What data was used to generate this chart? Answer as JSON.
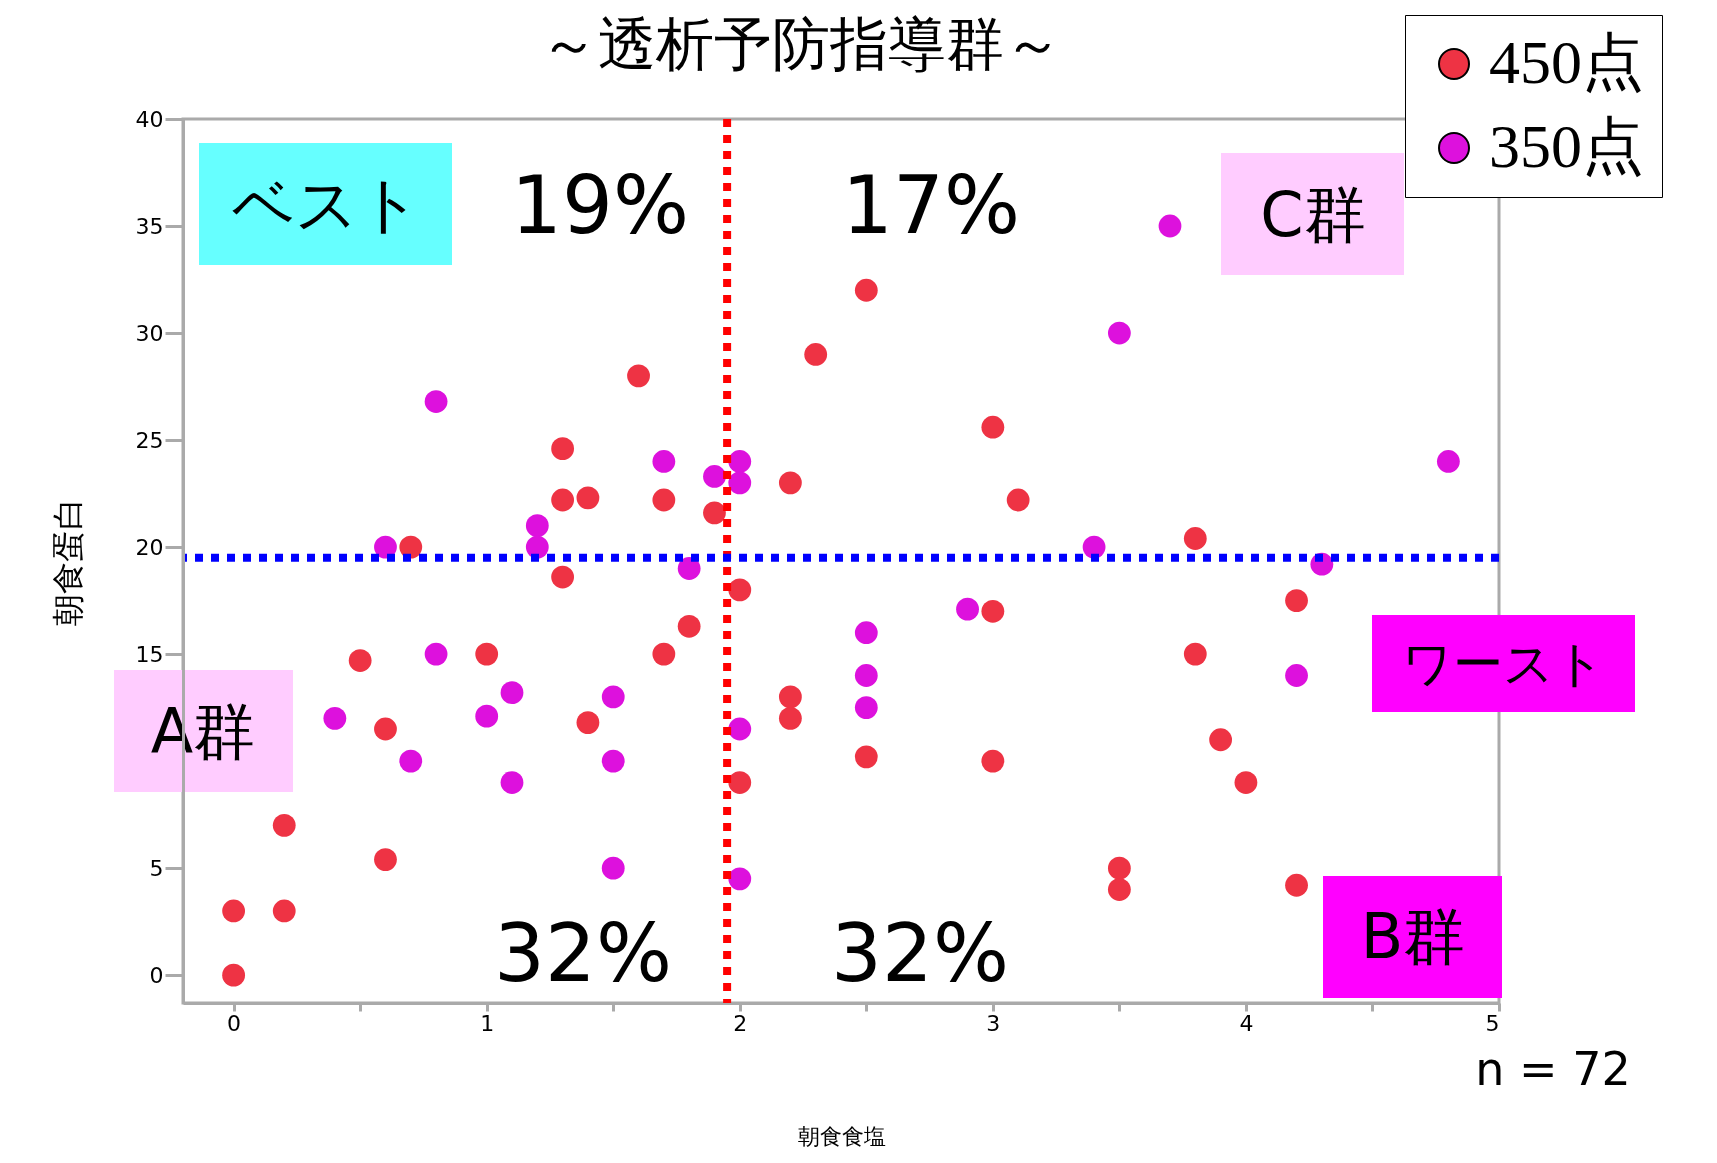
{
  "chart_data": {
    "type": "scatter",
    "title": "～透析予防指導群～",
    "xlabel": "朝食食塩",
    "ylabel": "朝食蛋白",
    "xlim": [
      -0.2,
      5
    ],
    "ylim": [
      -1.3,
      40
    ],
    "xticks": [
      0,
      {
        "value": 0.5,
        "label": null
      },
      1,
      {
        "value": 1.5,
        "label": null
      },
      2,
      {
        "value": 2.5,
        "label": null
      },
      3,
      {
        "value": 3.5,
        "label": null
      },
      4,
      {
        "value": 4.5,
        "label": null
      },
      5
    ],
    "yticks": [
      0,
      5,
      15,
      20,
      25,
      30,
      35,
      40
    ],
    "grid": false,
    "legend": "top right",
    "marker": "circle",
    "series": [
      {
        "name": "450点",
        "color": "#ee3344",
        "x": [
          0,
          0,
          0.2,
          0.2,
          0.5,
          0.6,
          0.6,
          0.7,
          1,
          1.3,
          1.3,
          1.4,
          1.3,
          1.4,
          1.6,
          1.7,
          1.7,
          1.8,
          1.9,
          2,
          2,
          2.2,
          2.2,
          2.2,
          2.3,
          2.5,
          2.5,
          3,
          3,
          3,
          3.1,
          3.5,
          3.5,
          3.8,
          3.8,
          3.9,
          4,
          4.2,
          4.2
        ],
        "values": [
          0,
          3,
          3,
          7,
          14.7,
          11.5,
          5.4,
          20,
          15,
          24.6,
          22.2,
          22.3,
          18.6,
          11.8,
          28,
          22.2,
          15,
          16.3,
          21.6,
          18,
          9,
          23,
          13,
          12,
          29,
          32,
          10.2,
          25.6,
          17,
          10,
          22.2,
          5,
          4,
          20.4,
          15,
          11,
          9,
          17.5,
          4.2
        ]
      },
      {
        "name": "350点",
        "color": "#dd11dd",
        "x": [
          0.4,
          0.6,
          0.7,
          0.8,
          0.8,
          1,
          1.1,
          1.1,
          1.2,
          1.2,
          1.5,
          1.5,
          1.5,
          1.7,
          1.8,
          1.9,
          2,
          2,
          2,
          2,
          2.5,
          2.5,
          2.5,
          2.9,
          3.4,
          3.5,
          3.7,
          4.2,
          4.3,
          4.8
        ],
        "values": [
          12,
          20,
          10,
          26.8,
          15,
          12.1,
          13.2,
          9,
          21,
          20,
          13,
          10,
          5,
          24,
          19,
          23.3,
          24,
          23,
          11.5,
          4.5,
          16,
          14,
          12.5,
          17.1,
          20,
          30,
          35,
          14,
          19.2,
          24
        ]
      }
    ],
    "ref_lines": [
      {
        "axis": "x",
        "value": 1.95,
        "color": "#ff0000",
        "line_style": "dotted"
      },
      {
        "axis": "y",
        "value": 19.5,
        "color": "#0000ff",
        "line_style": "dotted"
      }
    ],
    "annotations": [
      "ベスト",
      "19%",
      "17%",
      "C群",
      "A群",
      "ワースト",
      "32%",
      "32%",
      "B群",
      "n = 72"
    ]
  }
}
